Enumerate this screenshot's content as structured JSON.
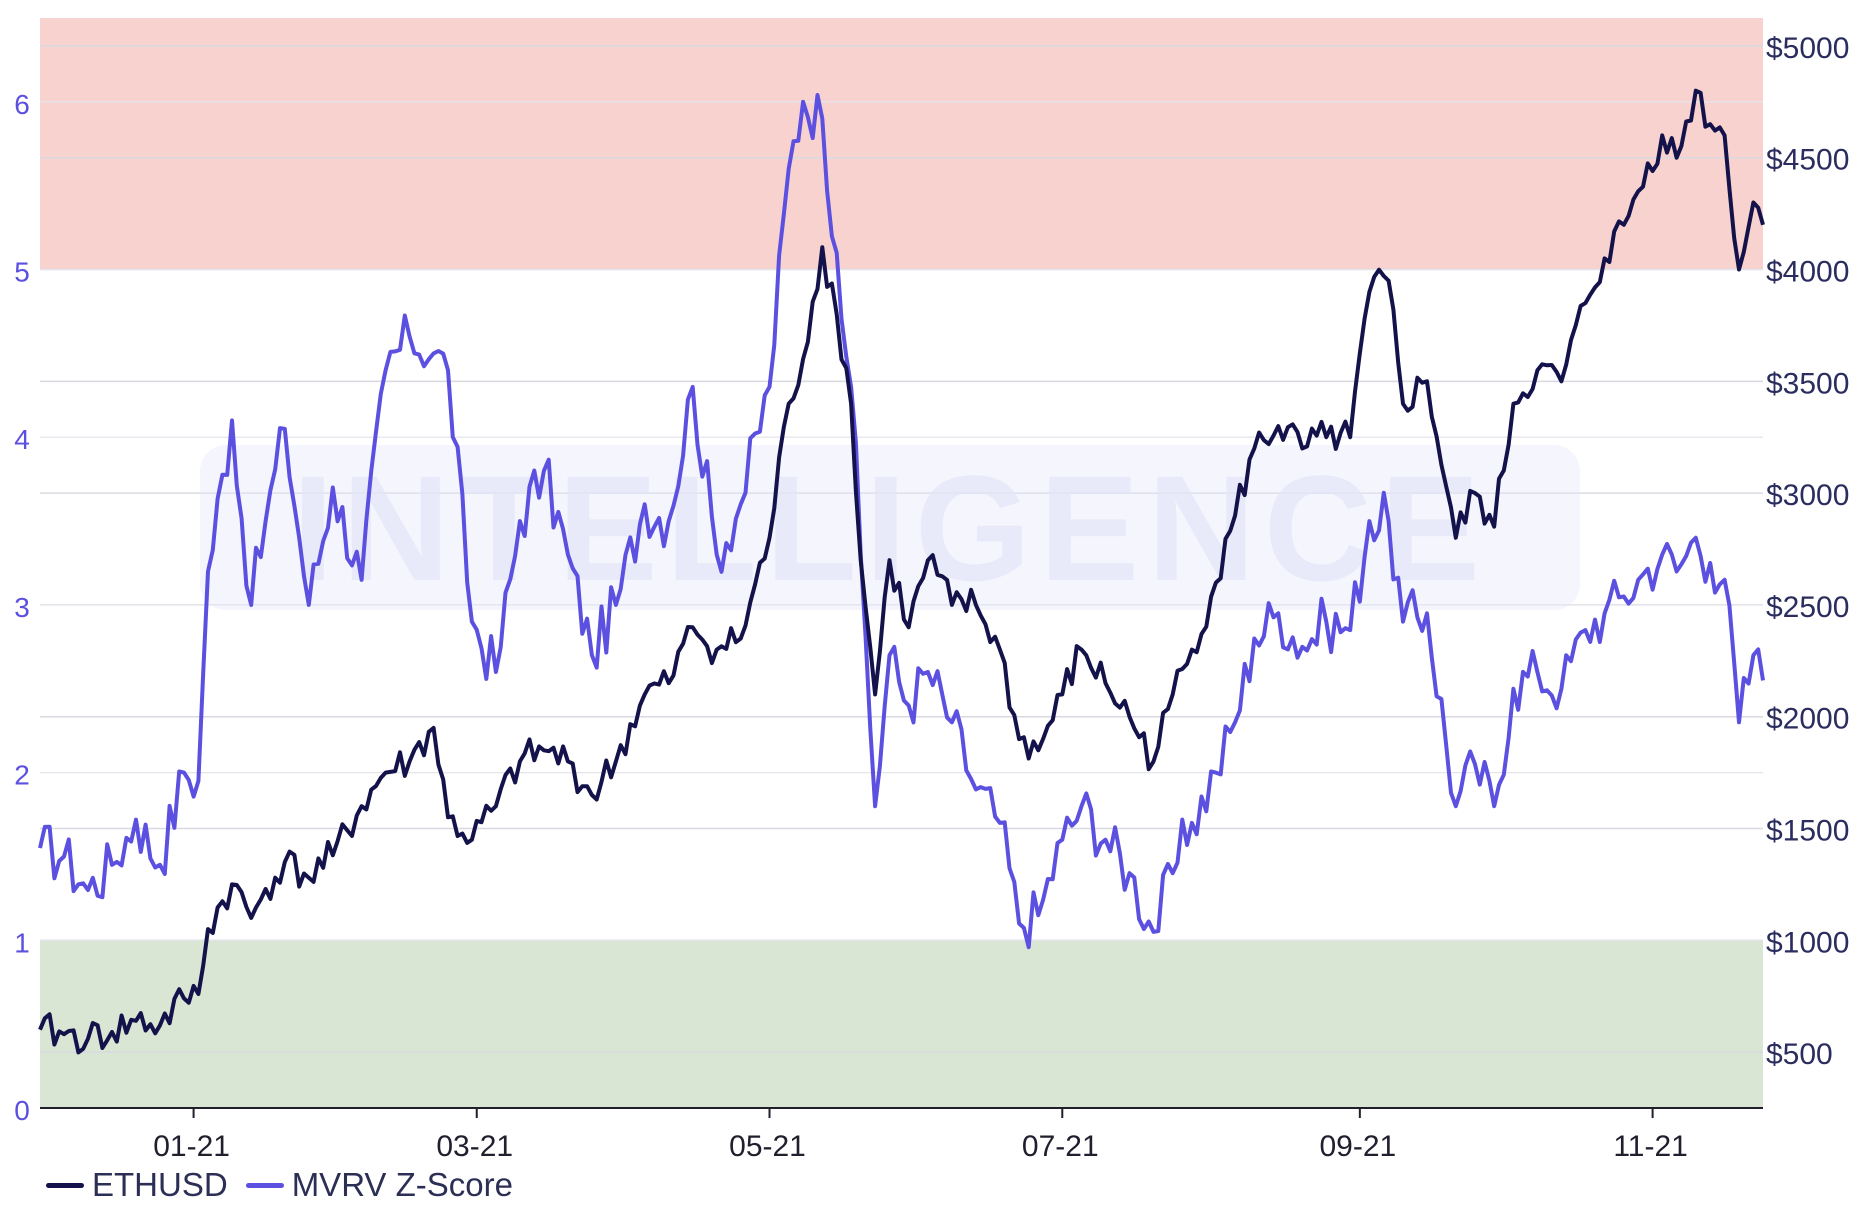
{
  "chart_data": {
    "type": "line",
    "watermark": "INTELLIGENCE",
    "left_axis": {
      "ticks": [
        0,
        1,
        2,
        3,
        4,
        5,
        6
      ],
      "tick_labels": [
        "0",
        "1",
        "2",
        "3",
        "4",
        "5",
        "6"
      ],
      "range": [
        0,
        6.5
      ],
      "color": "#5b50e0"
    },
    "right_axis": {
      "ticks": [
        500,
        1000,
        1500,
        2000,
        2500,
        3000,
        3500,
        4000,
        4500,
        5000
      ],
      "tick_labels": [
        "$500",
        "$1000",
        "$1500",
        "$2000",
        "$2500",
        "$3000",
        "$3500",
        "$4000",
        "$4500",
        "$5000"
      ],
      "range": [
        300,
        5000
      ],
      "color": "#2a2d5e"
    },
    "x_axis": {
      "range": [
        "2020-11-30",
        "2021-11-24"
      ],
      "ticks": [
        "2021-01-01",
        "2021-03-01",
        "2021-05-01",
        "2021-07-01",
        "2021-09-01",
        "2021-11-01"
      ],
      "tick_labels": [
        "01-21",
        "03-21",
        "05-21",
        "07-21",
        "09-21",
        "11-21"
      ]
    },
    "zones": [
      {
        "name": "overvalued",
        "from": 5,
        "to": 6.5,
        "axis": "left",
        "color": "#f8d2cf"
      },
      {
        "name": "undervalued",
        "from": 0,
        "to": 1,
        "axis": "left",
        "color": "#d9e6d3"
      }
    ],
    "grid": true,
    "legend_position": "bottom-left",
    "series": [
      {
        "name": "ETHUSD",
        "axis": "right",
        "color": "#14124a",
        "points": [
          [
            "2020-11-30",
            600
          ],
          [
            "2020-12-05",
            580
          ],
          [
            "2020-12-10",
            560
          ],
          [
            "2020-12-15",
            590
          ],
          [
            "2020-12-20",
            640
          ],
          [
            "2020-12-25",
            620
          ],
          [
            "2020-12-30",
            740
          ],
          [
            "2021-01-02",
            760
          ],
          [
            "2021-01-04",
            1050
          ],
          [
            "2021-01-09",
            1250
          ],
          [
            "2021-01-13",
            1100
          ],
          [
            "2021-01-16",
            1230
          ],
          [
            "2021-01-20",
            1350
          ],
          [
            "2021-01-25",
            1280
          ],
          [
            "2021-01-30",
            1380
          ],
          [
            "2021-02-05",
            1600
          ],
          [
            "2021-02-10",
            1750
          ],
          [
            "2021-02-15",
            1800
          ],
          [
            "2021-02-20",
            1950
          ],
          [
            "2021-02-23",
            1550
          ],
          [
            "2021-02-28",
            1450
          ],
          [
            "2021-03-05",
            1600
          ],
          [
            "2021-03-10",
            1800
          ],
          [
            "2021-03-15",
            1850
          ],
          [
            "2021-03-20",
            1800
          ],
          [
            "2021-03-25",
            1650
          ],
          [
            "2021-03-30",
            1800
          ],
          [
            "2021-04-05",
            2100
          ],
          [
            "2021-04-10",
            2150
          ],
          [
            "2021-04-15",
            2400
          ],
          [
            "2021-04-20",
            2300
          ],
          [
            "2021-04-25",
            2350
          ],
          [
            "2021-05-01",
            2800
          ],
          [
            "2021-05-05",
            3400
          ],
          [
            "2021-05-08",
            3600
          ],
          [
            "2021-05-12",
            4100
          ],
          [
            "2021-05-15",
            3800
          ],
          [
            "2021-05-18",
            3400
          ],
          [
            "2021-05-20",
            2700
          ],
          [
            "2021-05-23",
            2100
          ],
          [
            "2021-05-26",
            2700
          ],
          [
            "2021-05-30",
            2400
          ],
          [
            "2021-06-03",
            2700
          ],
          [
            "2021-06-08",
            2500
          ],
          [
            "2021-06-13",
            2500
          ],
          [
            "2021-06-18",
            2300
          ],
          [
            "2021-06-22",
            1900
          ],
          [
            "2021-06-26",
            1850
          ],
          [
            "2021-07-01",
            2100
          ],
          [
            "2021-07-05",
            2300
          ],
          [
            "2021-07-10",
            2150
          ],
          [
            "2021-07-15",
            2000
          ],
          [
            "2021-07-20",
            1800
          ],
          [
            "2021-07-24",
            2100
          ],
          [
            "2021-07-28",
            2300
          ],
          [
            "2021-08-02",
            2600
          ],
          [
            "2021-08-06",
            2900
          ],
          [
            "2021-08-10",
            3200
          ],
          [
            "2021-08-15",
            3300
          ],
          [
            "2021-08-20",
            3200
          ],
          [
            "2021-08-25",
            3250
          ],
          [
            "2021-08-30",
            3250
          ],
          [
            "2021-09-03",
            3900
          ],
          [
            "2021-09-07",
            3950
          ],
          [
            "2021-09-10",
            3400
          ],
          [
            "2021-09-15",
            3500
          ],
          [
            "2021-09-21",
            2800
          ],
          [
            "2021-09-25",
            3000
          ],
          [
            "2021-09-29",
            2850
          ],
          [
            "2021-10-03",
            3400
          ],
          [
            "2021-10-08",
            3550
          ],
          [
            "2021-10-13",
            3500
          ],
          [
            "2021-10-18",
            3850
          ],
          [
            "2021-10-22",
            4050
          ],
          [
            "2021-10-26",
            4200
          ],
          [
            "2021-10-29",
            4350
          ],
          [
            "2021-11-03",
            4600
          ],
          [
            "2021-11-06",
            4500
          ],
          [
            "2021-11-10",
            4800
          ],
          [
            "2021-11-13",
            4650
          ],
          [
            "2021-11-16",
            4600
          ],
          [
            "2021-11-19",
            4000
          ],
          [
            "2021-11-22",
            4300
          ],
          [
            "2021-11-24",
            4200
          ]
        ]
      },
      {
        "name": "MVRV Z-Score",
        "axis": "left",
        "color": "#5b50e0",
        "points": [
          [
            "2020-11-30",
            1.55
          ],
          [
            "2020-12-05",
            1.5
          ],
          [
            "2020-12-10",
            1.3
          ],
          [
            "2020-12-15",
            1.45
          ],
          [
            "2020-12-20",
            1.72
          ],
          [
            "2020-12-25",
            1.45
          ],
          [
            "2020-12-30",
            2.0
          ],
          [
            "2021-01-02",
            1.95
          ],
          [
            "2021-01-04",
            3.2
          ],
          [
            "2021-01-09",
            4.1
          ],
          [
            "2021-01-13",
            3.0
          ],
          [
            "2021-01-16",
            3.5
          ],
          [
            "2021-01-20",
            4.05
          ],
          [
            "2021-01-25",
            3.0
          ],
          [
            "2021-01-30",
            3.7
          ],
          [
            "2021-02-05",
            3.15
          ],
          [
            "2021-02-10",
            4.4
          ],
          [
            "2021-02-15",
            4.6
          ],
          [
            "2021-02-20",
            4.5
          ],
          [
            "2021-02-23",
            4.4
          ],
          [
            "2021-02-28",
            2.9
          ],
          [
            "2021-03-05",
            2.6
          ],
          [
            "2021-03-10",
            3.5
          ],
          [
            "2021-03-15",
            3.8
          ],
          [
            "2021-03-20",
            3.3
          ],
          [
            "2021-03-25",
            2.7
          ],
          [
            "2021-03-30",
            3.0
          ],
          [
            "2021-04-05",
            3.6
          ],
          [
            "2021-04-10",
            3.5
          ],
          [
            "2021-04-15",
            4.3
          ],
          [
            "2021-04-20",
            3.3
          ],
          [
            "2021-04-25",
            3.6
          ],
          [
            "2021-05-01",
            4.3
          ],
          [
            "2021-05-05",
            5.6
          ],
          [
            "2021-05-08",
            6.0
          ],
          [
            "2021-05-12",
            5.9
          ],
          [
            "2021-05-15",
            5.1
          ],
          [
            "2021-05-18",
            4.3
          ],
          [
            "2021-05-20",
            3.3
          ],
          [
            "2021-05-23",
            1.8
          ],
          [
            "2021-05-26",
            2.7
          ],
          [
            "2021-05-30",
            2.4
          ],
          [
            "2021-06-03",
            2.6
          ],
          [
            "2021-06-08",
            2.3
          ],
          [
            "2021-06-13",
            1.9
          ],
          [
            "2021-06-18",
            1.7
          ],
          [
            "2021-06-22",
            1.1
          ],
          [
            "2021-06-26",
            1.15
          ],
          [
            "2021-07-01",
            1.6
          ],
          [
            "2021-07-05",
            1.8
          ],
          [
            "2021-07-10",
            1.6
          ],
          [
            "2021-07-15",
            1.4
          ],
          [
            "2021-07-20",
            1.05
          ],
          [
            "2021-07-24",
            1.4
          ],
          [
            "2021-07-28",
            1.7
          ],
          [
            "2021-08-02",
            2.0
          ],
          [
            "2021-08-06",
            2.3
          ],
          [
            "2021-08-10",
            2.8
          ],
          [
            "2021-08-15",
            2.95
          ],
          [
            "2021-08-20",
            2.75
          ],
          [
            "2021-08-25",
            2.9
          ],
          [
            "2021-08-30",
            2.85
          ],
          [
            "2021-09-03",
            3.5
          ],
          [
            "2021-09-07",
            3.5
          ],
          [
            "2021-09-10",
            2.9
          ],
          [
            "2021-09-15",
            2.95
          ],
          [
            "2021-09-21",
            1.8
          ],
          [
            "2021-09-25",
            2.05
          ],
          [
            "2021-09-29",
            1.8
          ],
          [
            "2021-10-03",
            2.5
          ],
          [
            "2021-10-08",
            2.6
          ],
          [
            "2021-10-13",
            2.5
          ],
          [
            "2021-10-18",
            2.85
          ],
          [
            "2021-10-22",
            2.95
          ],
          [
            "2021-10-26",
            3.05
          ],
          [
            "2021-10-29",
            3.15
          ],
          [
            "2021-11-03",
            3.3
          ],
          [
            "2021-11-06",
            3.2
          ],
          [
            "2021-11-10",
            3.4
          ],
          [
            "2021-11-13",
            3.25
          ],
          [
            "2021-11-16",
            3.15
          ],
          [
            "2021-11-19",
            2.3
          ],
          [
            "2021-11-22",
            2.7
          ],
          [
            "2021-11-24",
            2.55
          ]
        ]
      }
    ]
  }
}
